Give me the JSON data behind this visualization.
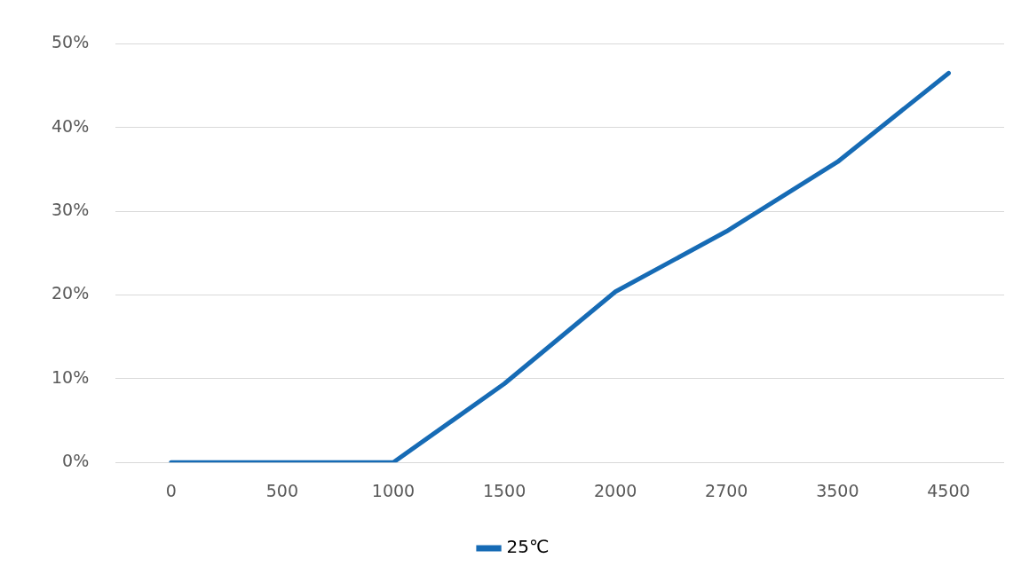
{
  "chart_data": {
    "type": "line",
    "categories": [
      "0",
      "500",
      "1000",
      "1500",
      "2000",
      "2700",
      "3500",
      "4500"
    ],
    "series": [
      {
        "name": "25℃",
        "color": "#166bb5",
        "values": [
          0,
          0,
          0,
          9.4,
          20.4,
          27.6,
          35.9,
          46.5
        ]
      }
    ],
    "ylim": [
      0,
      50
    ],
    "yticks": [
      {
        "value": 0,
        "label": "0%"
      },
      {
        "value": 10,
        "label": "10%"
      },
      {
        "value": 20,
        "label": "20%"
      },
      {
        "value": 30,
        "label": "30%"
      },
      {
        "value": 40,
        "label": "40%"
      },
      {
        "value": 50,
        "label": "50%"
      }
    ],
    "grid": "y",
    "legend": "bottom",
    "marker": "none",
    "line_style": "solid"
  }
}
